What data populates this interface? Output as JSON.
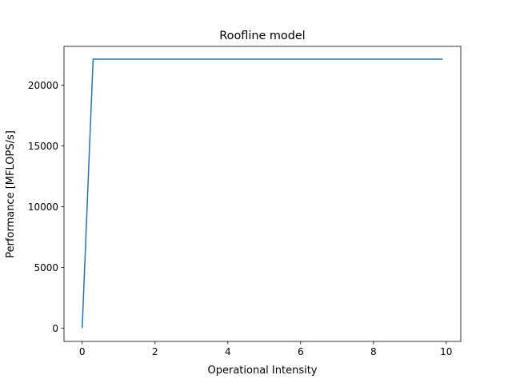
{
  "chart_data": {
    "type": "line",
    "title": "Roofline model",
    "xlabel": "Operational Intensity",
    "ylabel": "Performance [MFLOPS/s]",
    "xlim": [
      -0.5,
      10.4
    ],
    "ylim": [
      -1100,
      23200
    ],
    "xticks": [
      0,
      2,
      4,
      6,
      8,
      10
    ],
    "yticks": [
      0,
      5000,
      10000,
      15000,
      20000
    ],
    "grid": false,
    "series": [
      {
        "color": "#1f77b4",
        "x": [
          0,
          0.1,
          0.2,
          0.3,
          9.9
        ],
        "y": [
          0,
          7400,
          14800,
          22150,
          22150
        ]
      }
    ]
  }
}
